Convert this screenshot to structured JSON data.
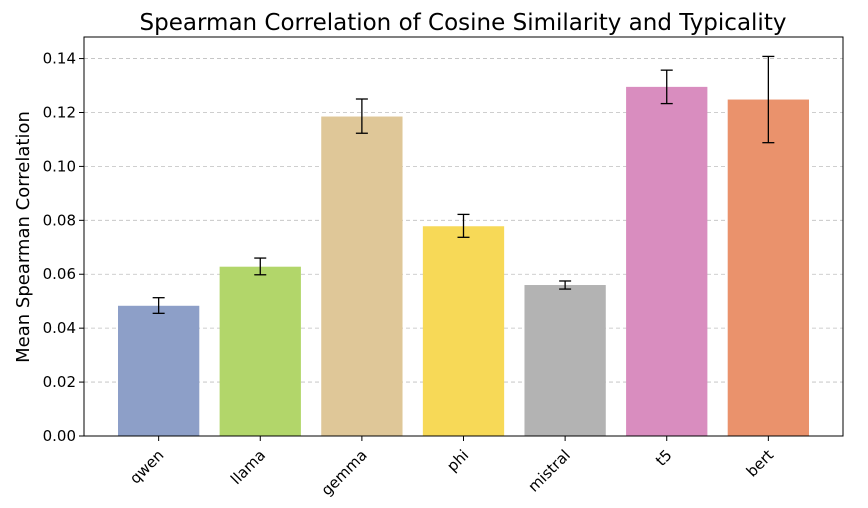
{
  "chart_data": {
    "type": "bar",
    "title": "Spearman Correlation of Cosine Similarity and Typicality",
    "xlabel": "",
    "ylabel": "Mean Spearman Correlation",
    "categories": [
      "qwen",
      "llama",
      "gemma",
      "phi",
      "mistral",
      "t5",
      "bert"
    ],
    "values": [
      0.0483,
      0.0628,
      0.1185,
      0.0778,
      0.056,
      0.1295,
      0.1248
    ],
    "error_low": [
      0.0455,
      0.0598,
      0.1123,
      0.0737,
      0.0545,
      0.1233,
      0.1088
    ],
    "error_high": [
      0.0513,
      0.066,
      0.125,
      0.0822,
      0.0575,
      0.1357,
      0.1408
    ],
    "colors": [
      "#8d9fc8",
      "#b2d66a",
      "#dfc798",
      "#f7d957",
      "#b3b3b3",
      "#d98dbf",
      "#ea926c"
    ],
    "ylim": [
      0,
      0.148
    ],
    "yticks": [
      0.0,
      0.02,
      0.04,
      0.06,
      0.08,
      0.1,
      0.12,
      0.14
    ],
    "ytick_labels": [
      "0.00",
      "0.02",
      "0.04",
      "0.06",
      "0.08",
      "0.10",
      "0.12",
      "0.14"
    ],
    "grid": "y-dashed"
  }
}
